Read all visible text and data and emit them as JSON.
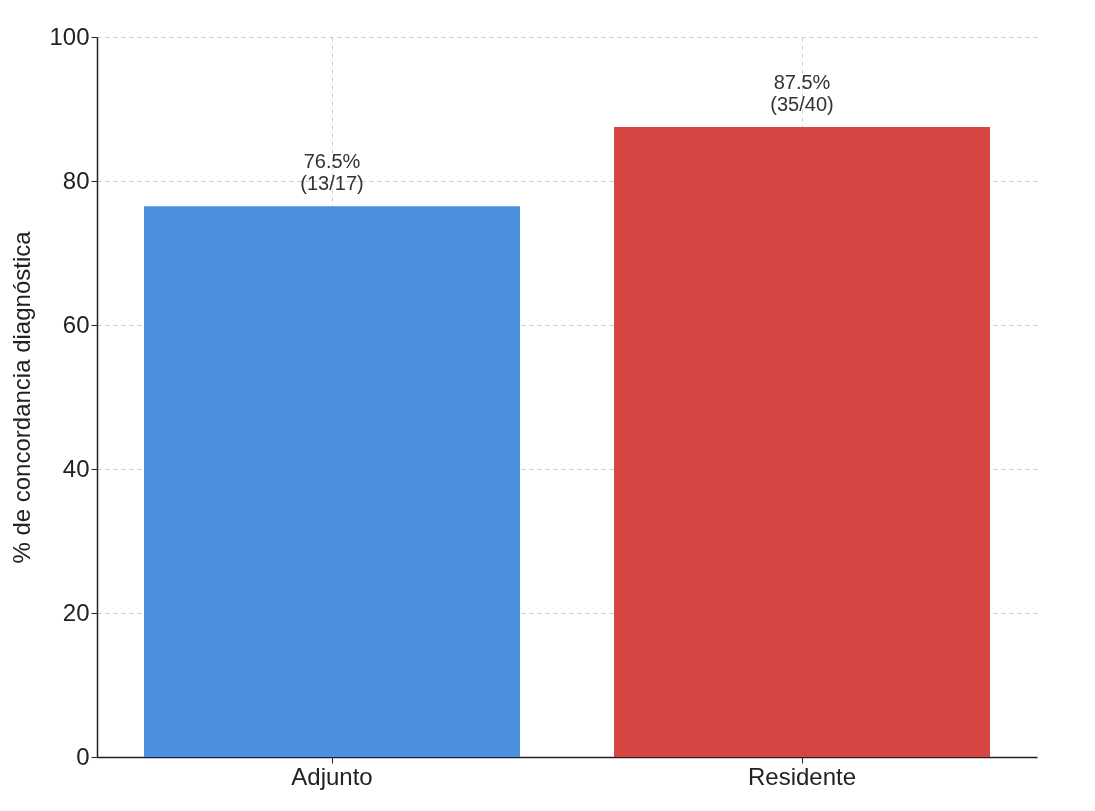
{
  "chart_data": {
    "type": "bar",
    "ylabel": "% de concordancia diagnóstica",
    "categories": [
      "Adjunto",
      "Residente"
    ],
    "values": [
      76.5,
      87.5
    ],
    "colors": [
      "#4a8fe0",
      "#d64541"
    ],
    "value_labels": [
      "76.5%\n(13/17)",
      "87.5%\n(35/40)"
    ],
    "ylim": [
      0,
      100
    ],
    "yticks": [
      0,
      20,
      40,
      60,
      80,
      100
    ],
    "grid": true
  }
}
